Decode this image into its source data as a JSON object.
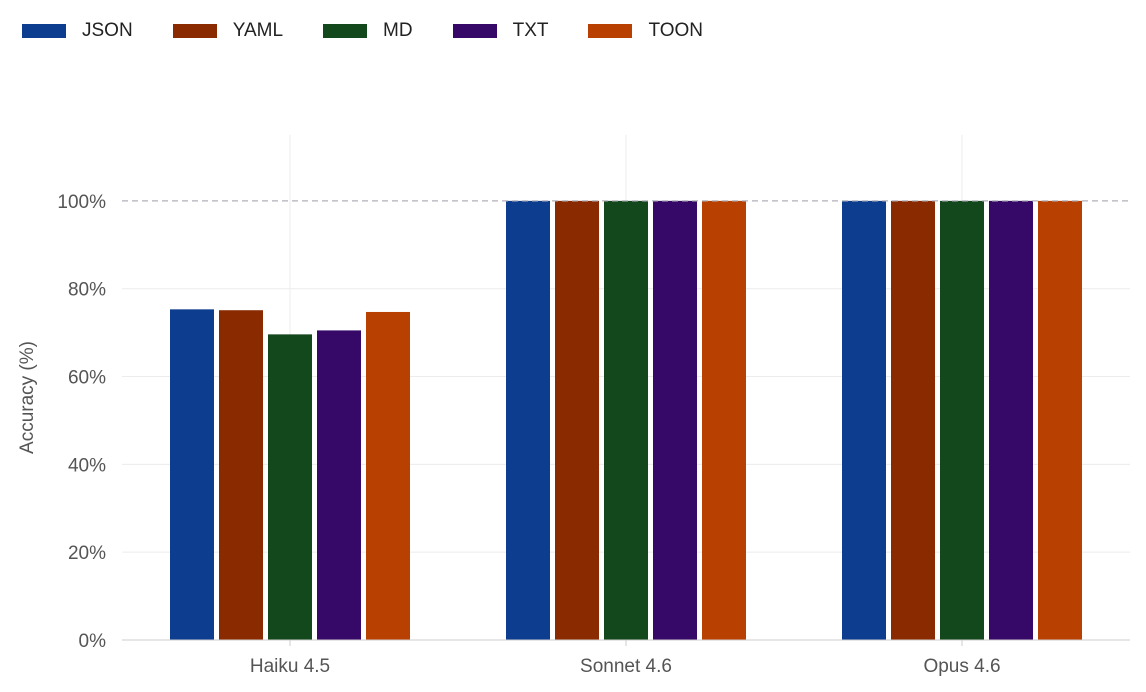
{
  "chart_data": {
    "type": "bar",
    "categories": [
      "Haiku 4.5",
      "Sonnet 4.6",
      "Opus 4.6"
    ],
    "series": [
      {
        "name": "JSON",
        "color": "#0d3d8f",
        "values": [
          75.3,
          100,
          100
        ]
      },
      {
        "name": "YAML",
        "color": "#8a2a00",
        "values": [
          75.1,
          100,
          100
        ]
      },
      {
        "name": "MD",
        "color": "#13471c",
        "values": [
          69.6,
          100,
          100
        ]
      },
      {
        "name": "TXT",
        "color": "#360868",
        "values": [
          70.5,
          100,
          100
        ]
      },
      {
        "name": "TOON",
        "color": "#b84000",
        "values": [
          74.7,
          100,
          100
        ]
      }
    ],
    "xlabel": "",
    "ylabel": "Accuracy (%)",
    "ylim": [
      0,
      115
    ],
    "yticks": [
      0,
      20,
      40,
      60,
      80,
      100
    ],
    "ytick_labels": [
      "0%",
      "20%",
      "40%",
      "60%",
      "80%",
      "100%"
    ],
    "reference_line": 100,
    "grid": true,
    "legend_position": "top-left"
  }
}
